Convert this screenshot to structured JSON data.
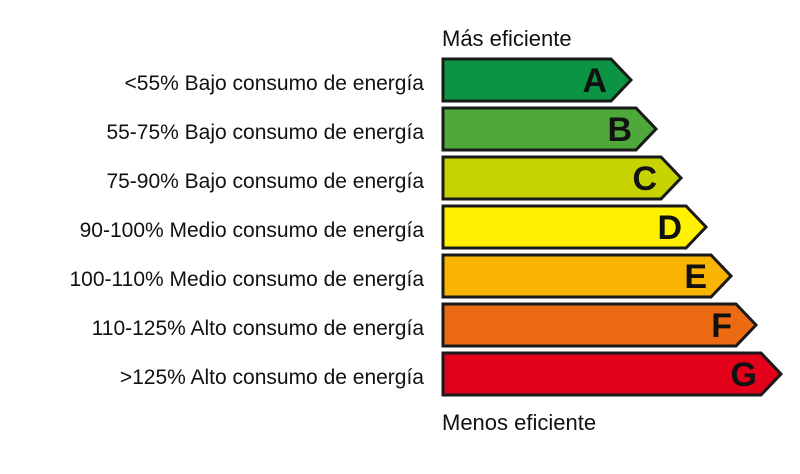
{
  "header": {
    "top_caption": "Más eficiente",
    "bottom_caption": "Menos eficiente"
  },
  "ratings": [
    {
      "letter": "A",
      "label": "<55% Bajo consumo de energía",
      "color": "#0a9444"
    },
    {
      "letter": "B",
      "label": "55-75% Bajo consumo de energía",
      "color": "#4fa83a"
    },
    {
      "letter": "C",
      "label": "75-90% Bajo consumo de energía",
      "color": "#c6d300"
    },
    {
      "letter": "D",
      "label": "90-100% Medio consumo de energía",
      "color": "#fff100"
    },
    {
      "letter": "E",
      "label": "100-110% Medio consumo de energía",
      "color": "#f8b400"
    },
    {
      "letter": "F",
      "label": "110-125% Alto consumo de energía",
      "color": "#ec6b12"
    },
    {
      "letter": "G",
      "label": ">125% Alto consumo de energía",
      "color": "#e2001a"
    }
  ]
}
